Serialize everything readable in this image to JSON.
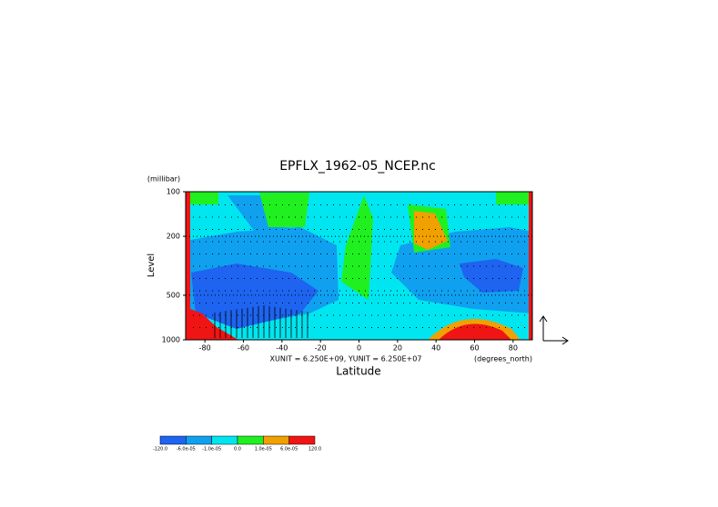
{
  "chart_data": {
    "type": "contour",
    "title": "EPFLX_1962-05_NCEP.nc",
    "y_unit": "(millibar)",
    "ylabel": "Level",
    "xlabel": "Latitude",
    "x_unit": "(degrees_north)",
    "annotation": "XUNIT = 6.250E+09, YUNIT = 6.250E+07",
    "xlim": [
      -90,
      90
    ],
    "xticks": [
      -80,
      -60,
      -40,
      -20,
      0,
      20,
      40,
      60,
      80
    ],
    "ylim": [
      1000,
      100
    ],
    "yticks": [
      100,
      200,
      500,
      1000
    ],
    "log_y": true,
    "colorbar": {
      "levels": [
        {
          "value": -120,
          "label": "-120.0"
        },
        {
          "value": -6e-05,
          "label": "-6.0e-05"
        },
        {
          "value": -1e-05,
          "label": "-1.0e-05"
        },
        {
          "value": 0,
          "label": "0.0"
        },
        {
          "value": 1e-05,
          "label": "1.0e-05"
        },
        {
          "value": 6e-05,
          "label": "6.0e-05"
        },
        {
          "value": 120,
          "label": "120.0"
        }
      ],
      "colors": [
        "#1e64f0",
        "#10a0f0",
        "#00e6f0",
        "#20f020",
        "#f0a000",
        "#f01414"
      ]
    }
  }
}
